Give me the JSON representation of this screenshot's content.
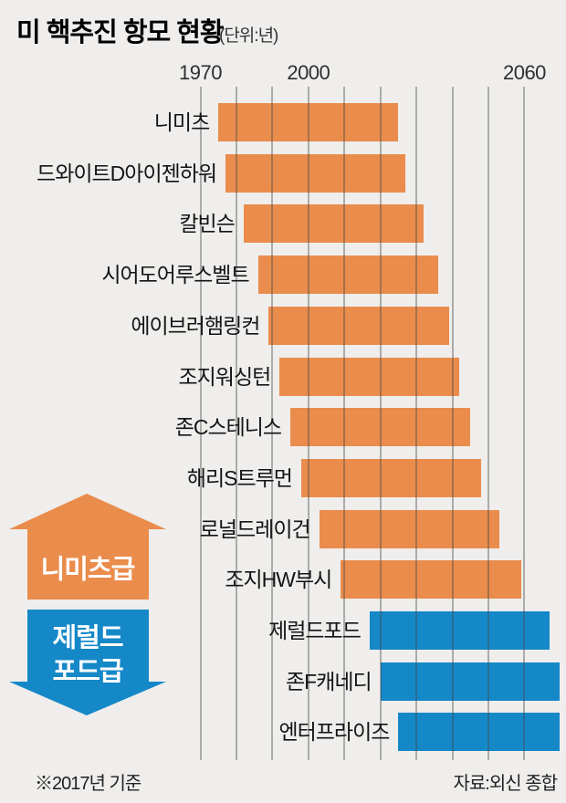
{
  "title": {
    "text": "미 핵추진 항모 현황",
    "unit": "(단위:년)"
  },
  "colors": {
    "nimitz": "#ea8c4c",
    "ford": "#1588c8",
    "background": "#efeeec",
    "gridline": "#a9a9a9",
    "text": "#141414"
  },
  "chart_data": {
    "type": "bar",
    "subtype": "horizontal-range-gantt",
    "title": "미 핵추진 항모 현황",
    "unit_label": "(단위:년)",
    "x_axis": {
      "min": 1970,
      "max": 2060,
      "gridline_interval": 10,
      "labeled_ticks": [
        1970,
        2000,
        2060
      ],
      "grid": true
    },
    "legend_position": "left-middle",
    "series": [
      {
        "name": "니미츠",
        "group": "nimitz",
        "start": 1975,
        "end": 2025
      },
      {
        "name": "드와이트D아이젠하워",
        "group": "nimitz",
        "start": 1977,
        "end": 2027
      },
      {
        "name": "칼빈슨",
        "group": "nimitz",
        "start": 1982,
        "end": 2032
      },
      {
        "name": "시어도어루스벨트",
        "group": "nimitz",
        "start": 1986,
        "end": 2036
      },
      {
        "name": "에이브러햄링컨",
        "group": "nimitz",
        "start": 1989,
        "end": 2039
      },
      {
        "name": "조지워싱턴",
        "group": "nimitz",
        "start": 1992,
        "end": 2042
      },
      {
        "name": "존C스테니스",
        "group": "nimitz",
        "start": 1995,
        "end": 2045
      },
      {
        "name": "해리S트루먼",
        "group": "nimitz",
        "start": 1998,
        "end": 2048
      },
      {
        "name": "로널드레이건",
        "group": "nimitz",
        "start": 2003,
        "end": 2053
      },
      {
        "name": "조지HW부시",
        "group": "nimitz",
        "start": 2009,
        "end": 2059
      },
      {
        "name": "제럴드포드",
        "group": "ford",
        "start": 2017,
        "end": 2067
      },
      {
        "name": "존F캐네디",
        "group": "ford",
        "start": 2020,
        "end": 2070,
        "clipped_at_chart_edge": true
      },
      {
        "name": "엔터프라이즈",
        "group": "ford",
        "start": 2025,
        "end": 2075,
        "clipped_at_chart_edge": true
      }
    ]
  },
  "legend": {
    "items": [
      {
        "label": "니미츠급",
        "lines": [
          "니미츠급"
        ],
        "color": "#ea8c4c",
        "arrow": "up"
      },
      {
        "label": "제럴드 포드급",
        "lines": [
          "제럴드",
          "포드급"
        ],
        "color": "#1588c8",
        "arrow": "down"
      }
    ]
  },
  "footer": {
    "note": "※2017년 기준",
    "source": "자료:외신 종합"
  }
}
